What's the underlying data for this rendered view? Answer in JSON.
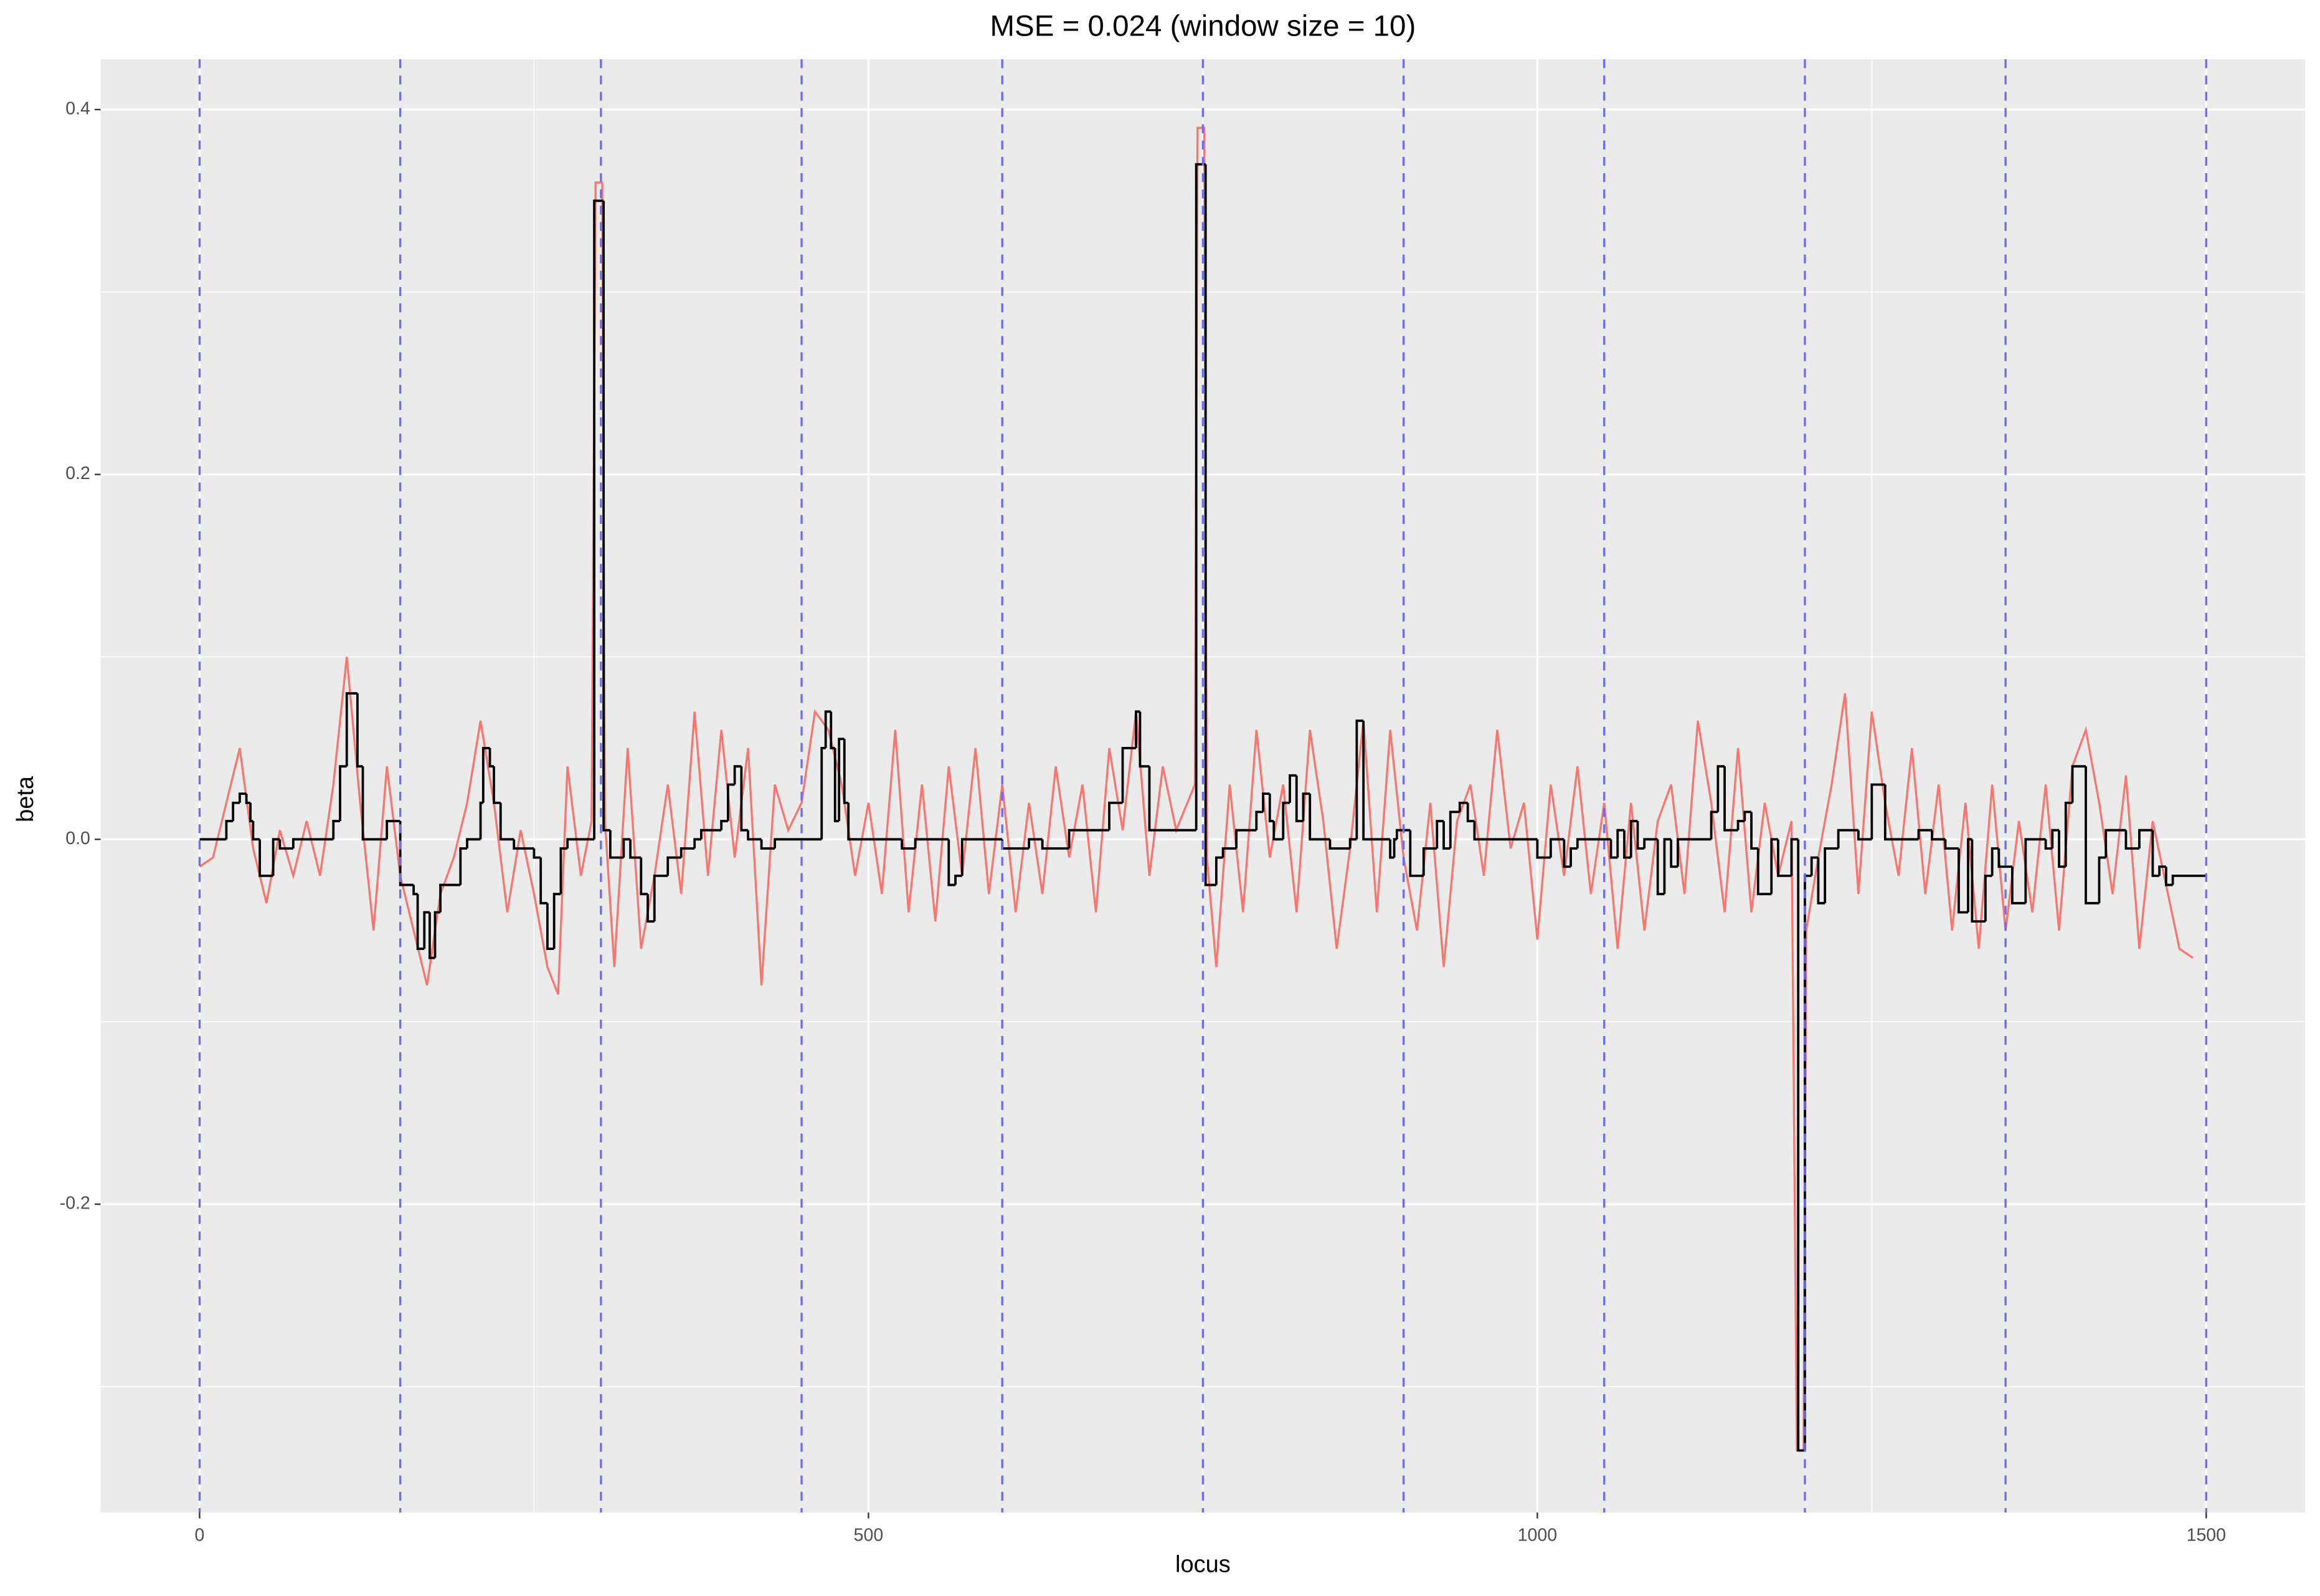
{
  "chart_data": {
    "type": "line",
    "title": "MSE = 0.024 (window size = 10)",
    "x_label": "locus",
    "y_label": "beta",
    "xlim": [
      -74,
      1574
    ],
    "ylim": [
      -0.369,
      0.4276
    ],
    "xticks": [
      0,
      500,
      1000,
      1500
    ],
    "yticks": [
      -0.2,
      {
        "value": 0,
        "label": "0.0"
      },
      0.2,
      0.4
    ],
    "minor_xticks": [
      250,
      750,
      1250
    ],
    "minor_yticks": [
      -0.3,
      -0.1,
      0.1,
      0.3
    ],
    "grid": true,
    "vlines": {
      "color": "#6b6bf5",
      "x": [
        0,
        150,
        300,
        450,
        600,
        750,
        900,
        1050,
        1200,
        1350,
        1500
      ]
    },
    "series": [
      {
        "color": "#f8766d",
        "shape": "line",
        "x": [
          0,
          10,
          20,
          30,
          40,
          50,
          60,
          70,
          80,
          90,
          100,
          110,
          120,
          130,
          140,
          150,
          160,
          170,
          180,
          190,
          200,
          210,
          220,
          230,
          240,
          250,
          260,
          268,
          275,
          285,
          293,
          296,
          301,
          303,
          310,
          320,
          330,
          340,
          350,
          360,
          370,
          380,
          390,
          400,
          410,
          420,
          430,
          440,
          450,
          460,
          470,
          480,
          490,
          500,
          510,
          520,
          530,
          540,
          550,
          560,
          570,
          580,
          590,
          600,
          610,
          620,
          630,
          640,
          650,
          660,
          670,
          680,
          690,
          700,
          710,
          720,
          730,
          744,
          746,
          751,
          753,
          760,
          770,
          780,
          790,
          800,
          810,
          820,
          830,
          840,
          850,
          860,
          870,
          880,
          890,
          900,
          910,
          920,
          930,
          940,
          950,
          960,
          970,
          980,
          990,
          1000,
          1010,
          1020,
          1030,
          1040,
          1050,
          1060,
          1070,
          1080,
          1090,
          1100,
          1110,
          1120,
          1130,
          1140,
          1150,
          1160,
          1170,
          1180,
          1190,
          1194,
          1199,
          1201,
          1210,
          1220,
          1230,
          1240,
          1250,
          1260,
          1270,
          1280,
          1290,
          1300,
          1310,
          1320,
          1330,
          1340,
          1350,
          1360,
          1370,
          1380,
          1390,
          1400,
          1410,
          1420,
          1430,
          1440,
          1450,
          1460,
          1470,
          1480,
          1490
        ],
        "values": [
          -0.015,
          -0.01,
          0.02,
          0.05,
          -0.005,
          -0.035,
          0.005,
          -0.02,
          0.01,
          -0.02,
          0.03,
          0.1,
          0.02,
          -0.05,
          0.04,
          -0.02,
          -0.05,
          -0.08,
          -0.03,
          -0.01,
          0.02,
          0.065,
          0.02,
          -0.04,
          0.005,
          -0.03,
          -0.07,
          -0.085,
          0.04,
          -0.02,
          0.01,
          0.36,
          0.36,
          0.01,
          -0.07,
          0.05,
          -0.06,
          -0.02,
          0.03,
          -0.03,
          0.07,
          -0.02,
          0.06,
          -0.01,
          0.05,
          -0.08,
          0.03,
          0.005,
          0.02,
          0.07,
          0.06,
          0.03,
          -0.02,
          0.02,
          -0.03,
          0.06,
          -0.04,
          0.03,
          -0.045,
          0.04,
          -0.02,
          0.05,
          -0.03,
          0.03,
          -0.04,
          0.02,
          -0.03,
          0.04,
          -0.01,
          0.03,
          -0.04,
          0.05,
          0.005,
          0.07,
          -0.02,
          0.04,
          0.005,
          0.03,
          0.39,
          0.39,
          -0.01,
          -0.07,
          0.03,
          -0.04,
          0.06,
          -0.01,
          0.03,
          -0.04,
          0.06,
          0.01,
          -0.06,
          -0.005,
          0.065,
          -0.04,
          0.06,
          -0.01,
          -0.05,
          0.02,
          -0.07,
          0.01,
          0.03,
          -0.02,
          0.06,
          -0.005,
          0.02,
          -0.055,
          0.03,
          -0.02,
          0.04,
          -0.03,
          0.02,
          -0.06,
          0.02,
          -0.05,
          0.01,
          0.03,
          -0.03,
          0.065,
          0.02,
          -0.04,
          0.05,
          -0.04,
          0.02,
          -0.02,
          0.01,
          -0.335,
          -0.335,
          -0.05,
          -0.01,
          0.03,
          0.08,
          -0.03,
          0.07,
          0.02,
          -0.02,
          0.05,
          -0.03,
          0.03,
          -0.05,
          0.02,
          -0.06,
          0.03,
          -0.05,
          0.01,
          -0.04,
          0.03,
          -0.05,
          0.04,
          0.06,
          0.02,
          -0.03,
          0.035,
          -0.06,
          0.01,
          -0.025,
          -0.06,
          -0.065
        ]
      },
      {
        "color": "#000000",
        "shape": "step",
        "x": [
          0,
          20,
          25,
          30,
          35,
          38,
          40,
          45,
          55,
          60,
          70,
          100,
          105,
          110,
          118,
          122,
          140,
          150,
          160,
          163,
          168,
          172,
          176,
          180,
          195,
          200,
          210,
          212,
          217,
          220,
          225,
          235,
          250,
          255,
          260,
          265,
          270,
          275,
          295,
          302,
          307,
          317,
          322,
          330,
          335,
          340,
          350,
          360,
          370,
          375,
          390,
          395,
          400,
          405,
          410,
          420,
          430,
          465,
          468,
          472,
          475,
          478,
          482,
          485,
          525,
          535,
          560,
          565,
          570,
          600,
          620,
          630,
          650,
          680,
          690,
          700,
          703,
          710,
          745,
          752,
          760,
          765,
          775,
          790,
          795,
          800,
          803,
          810,
          815,
          820,
          825,
          830,
          845,
          860,
          865,
          870,
          890,
          893,
          895,
          905,
          915,
          925,
          930,
          935,
          942,
          948,
          953,
          1000,
          1010,
          1020,
          1025,
          1030,
          1055,
          1060,
          1065,
          1070,
          1075,
          1080,
          1090,
          1095,
          1100,
          1105,
          1130,
          1135,
          1140,
          1150,
          1155,
          1160,
          1165,
          1175,
          1180,
          1190,
          1195,
          1200,
          1205,
          1210,
          1215,
          1225,
          1240,
          1250,
          1260,
          1285,
          1295,
          1305,
          1315,
          1322,
          1325,
          1335,
          1340,
          1345,
          1355,
          1365,
          1380,
          1385,
          1390,
          1395,
          1400,
          1410,
          1420,
          1425,
          1440,
          1450,
          1460,
          1465,
          1470,
          1475,
          1500
        ],
        "values": [
          0,
          0.01,
          0.02,
          0.025,
          0.02,
          0.01,
          0,
          -0.02,
          0,
          -0.005,
          0,
          0.01,
          0.04,
          0.08,
          0.04,
          0,
          0.01,
          -0.025,
          -0.03,
          -0.06,
          -0.04,
          -0.065,
          -0.04,
          -0.025,
          -0.005,
          0,
          0.02,
          0.05,
          0.04,
          0.02,
          0,
          -0.005,
          -0.01,
          -0.035,
          -0.06,
          -0.03,
          -0.005,
          0,
          0.35,
          0.005,
          -0.01,
          0,
          -0.01,
          -0.03,
          -0.045,
          -0.02,
          -0.01,
          -0.005,
          0,
          0.005,
          0.01,
          0.03,
          0.04,
          0.005,
          0,
          -0.005,
          0,
          0.05,
          0.07,
          0.05,
          0.01,
          0.055,
          0.02,
          0,
          -0.005,
          0,
          -0.025,
          -0.02,
          0,
          -0.005,
          0,
          -0.005,
          0.005,
          0.02,
          0.05,
          0.07,
          0.04,
          0.005,
          0.37,
          -0.025,
          -0.01,
          -0.005,
          0.005,
          0.015,
          0.025,
          0.01,
          0,
          0.02,
          0.035,
          0.01,
          0.025,
          0,
          -0.005,
          0,
          0.065,
          0,
          -0.01,
          0,
          0.005,
          -0.02,
          -0.005,
          0.01,
          -0.005,
          0.015,
          0.02,
          0.01,
          0,
          -0.01,
          0,
          -0.015,
          -0.005,
          0,
          -0.01,
          0.005,
          -0.01,
          0.01,
          -0.005,
          0,
          -0.03,
          0,
          -0.015,
          0,
          0.015,
          0.04,
          0.005,
          0.01,
          0.015,
          -0.005,
          -0.03,
          0,
          -0.02,
          0,
          -0.335,
          -0.02,
          -0.01,
          -0.035,
          -0.005,
          0.005,
          0,
          0.03,
          0,
          0.005,
          0,
          -0.005,
          -0.04,
          0,
          -0.045,
          -0.02,
          -0.005,
          -0.015,
          -0.035,
          0,
          -0.005,
          0.005,
          -0.015,
          0.02,
          0.04,
          -0.035,
          -0.01,
          0.005,
          -0.005,
          0.005,
          -0.02,
          -0.015,
          -0.025,
          -0.02,
          -0.02
        ]
      }
    ]
  }
}
